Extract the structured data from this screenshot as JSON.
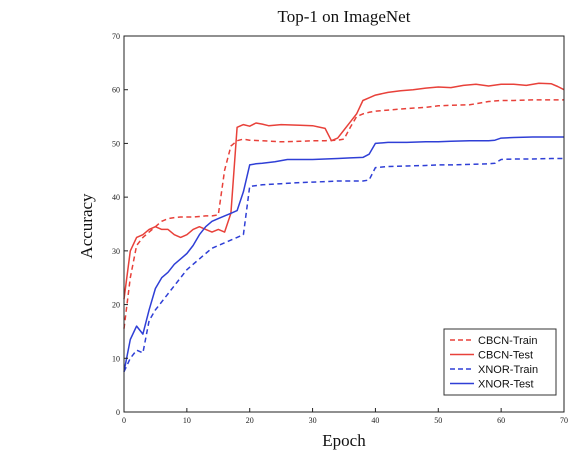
{
  "chart_data": {
    "type": "line",
    "title": "Top-1 on ImageNet",
    "xlabel": "Epoch",
    "ylabel": "Accuracy",
    "xlim": [
      0,
      70
    ],
    "ylim": [
      0,
      70
    ],
    "xticks": [
      "0",
      "10",
      "20",
      "30",
      "40",
      "50",
      "60",
      "70"
    ],
    "yticks": [
      "0",
      "10",
      "20",
      "30",
      "40",
      "50",
      "60",
      "70"
    ],
    "grid": false,
    "legend_position": "bottom-right",
    "series": [
      {
        "name": "CBCN-Train",
        "color": "#e8413a",
        "dash": "dashed",
        "x": [
          0,
          1,
          2,
          3,
          4,
          5,
          6,
          7,
          8,
          9,
          10,
          11,
          12,
          13,
          14,
          15,
          16,
          17,
          18,
          19,
          20,
          22,
          25,
          28,
          30,
          32,
          34,
          35,
          36,
          37,
          38,
          39,
          40,
          42,
          45,
          48,
          50,
          52,
          55,
          58,
          60,
          62,
          65,
          68,
          70
        ],
        "y": [
          15.5,
          25,
          31,
          32.5,
          33.5,
          34.5,
          35.5,
          36,
          36.2,
          36.3,
          36.3,
          36.3,
          36.4,
          36.5,
          36.5,
          36.7,
          45,
          49.5,
          50.5,
          50.8,
          50.6,
          50.5,
          50.3,
          50.4,
          50.5,
          50.5,
          50.6,
          50.8,
          53,
          55,
          55.5,
          55.8,
          56,
          56.2,
          56.5,
          56.7,
          57,
          57.1,
          57.2,
          57.8,
          58,
          58,
          58.1,
          58.1,
          58.1
        ]
      },
      {
        "name": "CBCN-Test",
        "color": "#e8413a",
        "dash": "solid",
        "x": [
          0,
          1,
          2,
          3,
          4,
          5,
          6,
          7,
          8,
          9,
          10,
          11,
          12,
          13,
          14,
          15,
          16,
          17,
          18,
          19,
          20,
          21,
          22,
          23,
          25,
          28,
          30,
          32,
          33,
          34,
          35,
          36,
          37,
          38,
          39,
          40,
          42,
          44,
          46,
          48,
          50,
          52,
          54,
          56,
          58,
          60,
          62,
          64,
          66,
          68,
          69,
          70
        ],
        "y": [
          21,
          30,
          32.5,
          33,
          34,
          34.5,
          34,
          34,
          33,
          32.5,
          33,
          34,
          34.5,
          34,
          33.5,
          34,
          33.5,
          37,
          53,
          53.5,
          53.2,
          53.8,
          53.6,
          53.3,
          53.5,
          53.4,
          53.3,
          52.8,
          50.5,
          51,
          52.5,
          54,
          55.5,
          58,
          58.5,
          59,
          59.5,
          59.8,
          60,
          60.3,
          60.5,
          60.4,
          60.8,
          61,
          60.7,
          61,
          61,
          60.8,
          61.2,
          61.1,
          60.6,
          60
        ]
      },
      {
        "name": "XNOR-Train",
        "color": "#2f3fd6",
        "dash": "dashed",
        "x": [
          0,
          1,
          2,
          3,
          4,
          5,
          6,
          7,
          8,
          9,
          10,
          11,
          12,
          13,
          14,
          15,
          16,
          17,
          18,
          19,
          20,
          22,
          25,
          28,
          30,
          32,
          34,
          36,
          38,
          39,
          40,
          42,
          45,
          48,
          50,
          52,
          55,
          58,
          59,
          60,
          62,
          65,
          68,
          70
        ],
        "y": [
          7.5,
          10,
          11.5,
          11,
          17,
          19,
          20.5,
          22,
          23.5,
          25,
          26.5,
          27.5,
          28.5,
          29.5,
          30.5,
          31,
          31.5,
          32,
          32.5,
          33,
          42,
          42.3,
          42.5,
          42.7,
          42.8,
          42.9,
          43,
          43,
          43,
          43.2,
          45.5,
          45.7,
          45.8,
          45.9,
          46,
          46,
          46.1,
          46.2,
          46.3,
          47,
          47.1,
          47.1,
          47.2,
          47.2
        ]
      },
      {
        "name": "XNOR-Test",
        "color": "#2f3fd6",
        "dash": "solid",
        "x": [
          0,
          1,
          2,
          3,
          4,
          5,
          6,
          7,
          8,
          9,
          10,
          11,
          12,
          13,
          14,
          15,
          16,
          17,
          18,
          19,
          20,
          21,
          22,
          24,
          26,
          28,
          30,
          32,
          34,
          36,
          38,
          39,
          40,
          42,
          45,
          48,
          50,
          52,
          55,
          58,
          59,
          60,
          62,
          65,
          68,
          70
        ],
        "y": [
          7.5,
          13.5,
          16,
          14.5,
          19,
          23,
          25,
          26,
          27.5,
          28.5,
          29.5,
          31,
          33,
          34.5,
          35.5,
          36,
          36.5,
          37,
          37.5,
          41,
          46,
          46.2,
          46.3,
          46.6,
          47,
          47,
          47,
          47.1,
          47.2,
          47.3,
          47.4,
          48,
          50,
          50.2,
          50.2,
          50.3,
          50.3,
          50.4,
          50.5,
          50.5,
          50.6,
          51,
          51.1,
          51.2,
          51.2,
          51.2
        ]
      }
    ]
  }
}
